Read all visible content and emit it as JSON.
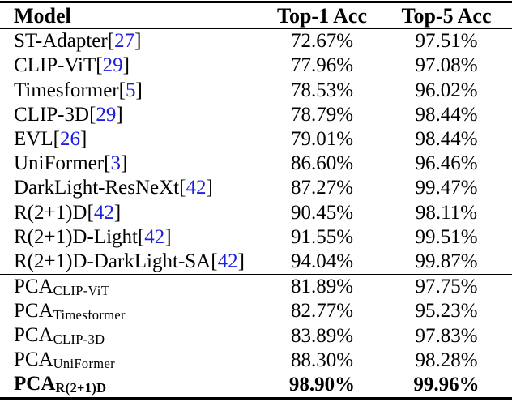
{
  "colors": {
    "background": "#ffffff",
    "text": "#000000",
    "citation_blue": "#1e1ee0",
    "rule": "#000000"
  },
  "table": {
    "columns": [
      "Model",
      "Top-1 Acc",
      "Top-5 Acc"
    ],
    "citation_brackets": [
      "[",
      "]"
    ],
    "rows": [
      {
        "model": "ST-Adapter",
        "citation": "27",
        "top1": "72.67%",
        "top5": "97.51%"
      },
      {
        "model": "CLIP-ViT",
        "citation": "29",
        "top1": "77.96%",
        "top5": "97.08%"
      },
      {
        "model": "Timesformer",
        "citation": "5",
        "top1": "78.53%",
        "top5": "96.02%"
      },
      {
        "model": "CLIP-3D",
        "citation": "29",
        "top1": "78.79%",
        "top5": "98.44%"
      },
      {
        "model": "EVL",
        "citation": "26",
        "top1": "79.01%",
        "top5": "98.44%"
      },
      {
        "model": "UniFormer",
        "citation": "3",
        "top1": "86.60%",
        "top5": "96.46%"
      },
      {
        "model": "DarkLight-ResNeXt",
        "citation": "42",
        "top1": "87.27%",
        "top5": "99.47%"
      },
      {
        "model": "R(2+1)D",
        "citation": "42",
        "top1": "90.45%",
        "top5": "98.11%"
      },
      {
        "model": "R(2+1)D-Light",
        "citation": "42",
        "top1": "91.55%",
        "top5": "99.51%"
      },
      {
        "model": "R(2+1)D-DarkLight-SA",
        "citation": "42",
        "top1": "94.04%",
        "top5": "99.87%"
      },
      {
        "model": "PCA",
        "subscript": "CLIP-ViT",
        "top1": "81.89%",
        "top5": "97.75%",
        "section_start": true
      },
      {
        "model": "PCA",
        "subscript": "Timesformer",
        "top1": "82.77%",
        "top5": "95.23%"
      },
      {
        "model": "PCA",
        "subscript": "CLIP-3D",
        "top1": "83.89%",
        "top5": "97.83%"
      },
      {
        "model": "PCA",
        "subscript": "UniFormer",
        "top1": "88.30%",
        "top5": "98.28%"
      },
      {
        "model": "PCA",
        "subscript": "R(2+1)D",
        "top1": "98.90%",
        "top5": "99.96%",
        "bold": true
      }
    ]
  }
}
